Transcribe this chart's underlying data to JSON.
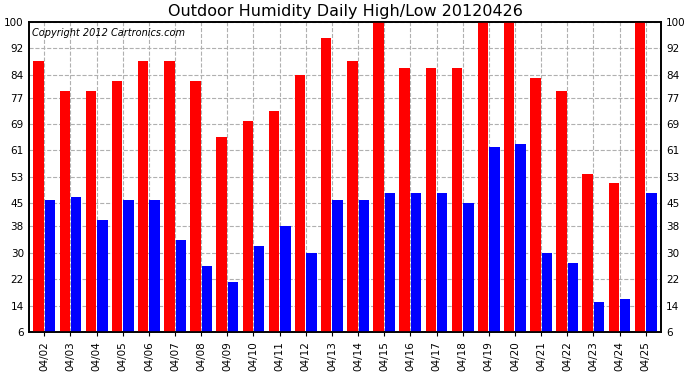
{
  "title": "Outdoor Humidity Daily High/Low 20120426",
  "copyright": "Copyright 2012 Cartronics.com",
  "dates": [
    "04/02",
    "04/03",
    "04/04",
    "04/05",
    "04/06",
    "04/07",
    "04/08",
    "04/09",
    "04/10",
    "04/11",
    "04/12",
    "04/13",
    "04/14",
    "04/15",
    "04/16",
    "04/17",
    "04/18",
    "04/19",
    "04/20",
    "04/21",
    "04/22",
    "04/23",
    "04/24",
    "04/25"
  ],
  "high": [
    88,
    79,
    79,
    82,
    88,
    88,
    82,
    65,
    70,
    73,
    84,
    95,
    88,
    100,
    86,
    86,
    86,
    100,
    100,
    83,
    79,
    54,
    51,
    100
  ],
  "low": [
    46,
    47,
    40,
    46,
    46,
    34,
    26,
    21,
    32,
    38,
    30,
    46,
    46,
    48,
    48,
    48,
    45,
    62,
    63,
    30,
    27,
    15,
    16,
    48
  ],
  "bar_color_high": "#ff0000",
  "bar_color_low": "#0000ff",
  "background_color": "#ffffff",
  "plot_bg_color": "#ffffff",
  "grid_color": "#b0b0b0",
  "ylim_low": 6,
  "ylim_high": 100,
  "yticks": [
    6,
    14,
    22,
    30,
    38,
    45,
    53,
    61,
    69,
    77,
    84,
    92,
    100
  ],
  "title_fontsize": 11.5,
  "copyright_fontsize": 7,
  "tick_fontsize": 7.5,
  "bar_width": 0.4,
  "bar_gap": 0.04
}
